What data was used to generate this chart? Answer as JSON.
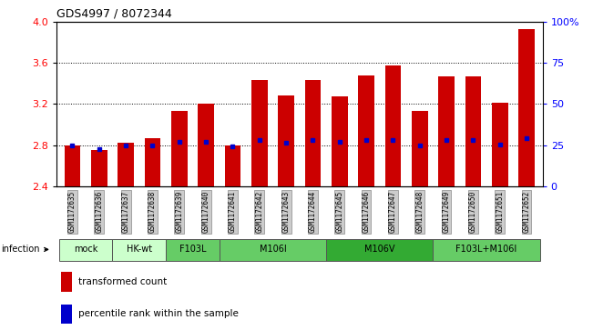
{
  "title": "GDS4997 / 8072344",
  "samples": [
    "GSM1172635",
    "GSM1172636",
    "GSM1172637",
    "GSM1172638",
    "GSM1172639",
    "GSM1172640",
    "GSM1172641",
    "GSM1172642",
    "GSM1172643",
    "GSM1172644",
    "GSM1172645",
    "GSM1172646",
    "GSM1172647",
    "GSM1172648",
    "GSM1172649",
    "GSM1172650",
    "GSM1172651",
    "GSM1172652"
  ],
  "bar_values": [
    2.8,
    2.75,
    2.82,
    2.87,
    3.13,
    3.2,
    2.8,
    3.43,
    3.28,
    3.43,
    3.27,
    3.48,
    3.57,
    3.13,
    3.47,
    3.47,
    3.21,
    3.93
  ],
  "blue_values": [
    2.8,
    2.76,
    2.8,
    2.8,
    2.83,
    2.83,
    2.79,
    2.85,
    2.82,
    2.85,
    2.83,
    2.85,
    2.85,
    2.8,
    2.85,
    2.85,
    2.81,
    2.87
  ],
  "ylim": [
    2.4,
    4.0
  ],
  "yticks": [
    2.4,
    2.8,
    3.2,
    3.6,
    4.0
  ],
  "right_yticks": [
    0,
    25,
    50,
    75,
    100
  ],
  "bar_color": "#cc0000",
  "blue_color": "#0000cc",
  "bar_width": 0.6,
  "groups": [
    {
      "label": "mock",
      "indices": [
        0,
        1
      ],
      "color": "#ccffcc"
    },
    {
      "label": "HK-wt",
      "indices": [
        2,
        3
      ],
      "color": "#ccffcc"
    },
    {
      "label": "F103L",
      "indices": [
        4,
        5
      ],
      "color": "#66cc66"
    },
    {
      "label": "M106I",
      "indices": [
        6,
        7,
        8,
        9
      ],
      "color": "#66cc66"
    },
    {
      "label": "M106V",
      "indices": [
        10,
        11,
        12,
        13
      ],
      "color": "#33aa33"
    },
    {
      "label": "F103L+M106I",
      "indices": [
        14,
        15,
        16,
        17
      ],
      "color": "#66cc66"
    }
  ]
}
